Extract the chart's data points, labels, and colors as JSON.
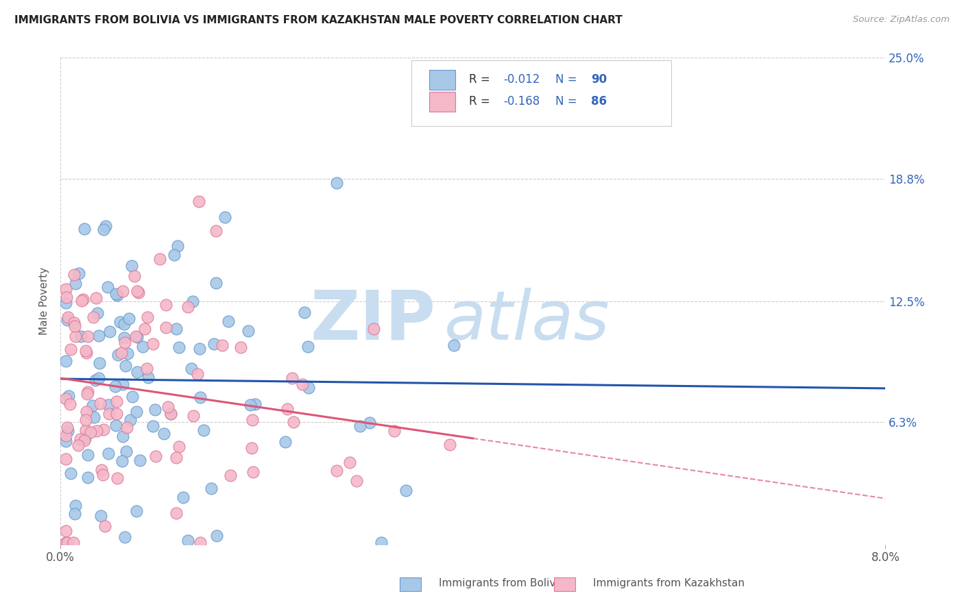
{
  "title": "IMMIGRANTS FROM BOLIVIA VS IMMIGRANTS FROM KAZAKHSTAN MALE POVERTY CORRELATION CHART",
  "source": "Source: ZipAtlas.com",
  "ylabel": "Male Poverty",
  "xlim": [
    0.0,
    0.08
  ],
  "ylim": [
    0.0,
    0.25
  ],
  "xtick_labels": [
    "0.0%",
    "8.0%"
  ],
  "xtick_positions": [
    0.0,
    0.08
  ],
  "ytick_labels": [
    "25.0%",
    "18.8%",
    "12.5%",
    "6.3%"
  ],
  "ytick_positions": [
    0.25,
    0.188,
    0.125,
    0.063
  ],
  "bolivia_color": "#a8c8e8",
  "bolivia_edge": "#6699cc",
  "kazakhstan_color": "#f4b8c8",
  "kazakhstan_edge": "#dd7799",
  "bolivia_R": -0.012,
  "bolivia_N": 90,
  "kazakhstan_R": -0.168,
  "kazakhstan_N": 86,
  "text_blue": "#3366bb",
  "text_red": "#cc2222",
  "background_color": "#ffffff",
  "grid_color": "#cccccc",
  "bolivia_trend_color": "#2255aa",
  "kazakhstan_trend_color": "#dd5577",
  "watermark_zip_color": "#c8ddf0",
  "watermark_atlas_color": "#c8ddf0",
  "legend_R_label_color": "#333333",
  "legend_val_color": "#cc2222",
  "legend_N_label_color": "#3366bb",
  "legend_N_val_color": "#3366bb"
}
